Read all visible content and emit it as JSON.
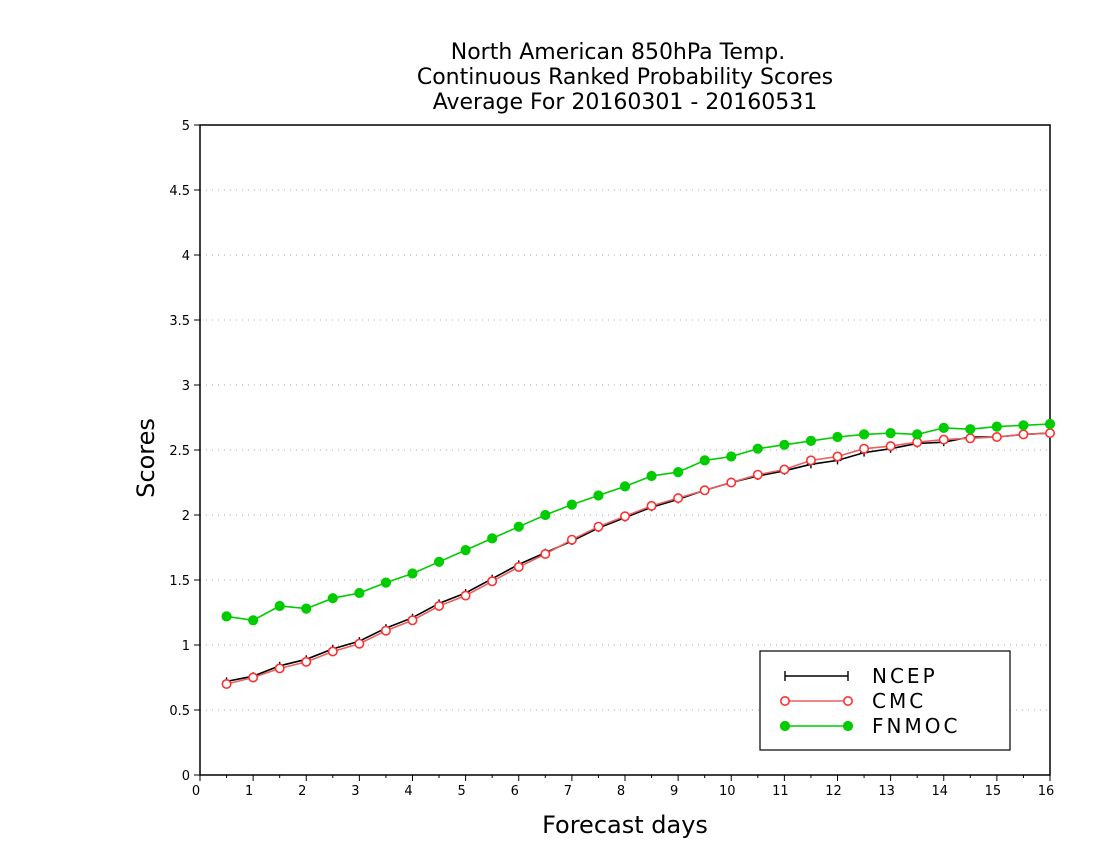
{
  "chart_data": {
    "type": "line",
    "title_lines": [
      "North American 850hPa Temp.",
      "Continuous Ranked Probability Scores",
      "Average For 20160301 - 20160531"
    ],
    "xlabel": "Forecast days",
    "ylabel": "Scores",
    "xlim": [
      0,
      16
    ],
    "ylim": [
      0,
      5
    ],
    "x_ticks": [
      0,
      1,
      2,
      3,
      4,
      5,
      6,
      7,
      8,
      9,
      10,
      11,
      12,
      13,
      14,
      15,
      16
    ],
    "x_tick_labels": [
      "0",
      "1",
      "2",
      "3",
      "4",
      "5",
      "6",
      "7",
      "8",
      "9",
      "10",
      "11",
      "12",
      "13",
      "14",
      "15",
      "16"
    ],
    "y_ticks": [
      0,
      0.5,
      1,
      1.5,
      2,
      2.5,
      3,
      3.5,
      4,
      4.5,
      5
    ],
    "y_tick_labels": [
      "0",
      "0.5",
      "1",
      "1.5",
      "2",
      "2.5",
      "3",
      "3.5",
      "4",
      "4.5",
      "5"
    ],
    "grid": "horizontal-dotted",
    "legend_position": "bottom-right",
    "x": [
      0.5,
      1,
      1.5,
      2,
      2.5,
      3,
      3.5,
      4,
      4.5,
      5,
      5.5,
      6,
      6.5,
      7,
      7.5,
      8,
      8.5,
      9,
      9.5,
      10,
      10.5,
      11,
      11.5,
      12,
      12.5,
      13,
      13.5,
      14,
      14.5,
      15,
      15.5,
      16
    ],
    "series": [
      {
        "name": "NCEP",
        "color": "#000000",
        "marker": "plus",
        "values": [
          0.72,
          0.76,
          0.84,
          0.89,
          0.97,
          1.03,
          1.13,
          1.21,
          1.32,
          1.4,
          1.51,
          1.62,
          1.71,
          1.8,
          1.9,
          1.98,
          2.06,
          2.12,
          2.19,
          2.25,
          2.3,
          2.34,
          2.39,
          2.42,
          2.48,
          2.51,
          2.55,
          2.56,
          2.6,
          2.6,
          2.62,
          2.63
        ]
      },
      {
        "name": "CMC",
        "color": "#ff3030",
        "line_color": "#e86060",
        "marker": "open-circle",
        "values": [
          0.7,
          0.75,
          0.82,
          0.87,
          0.95,
          1.01,
          1.11,
          1.19,
          1.3,
          1.38,
          1.49,
          1.6,
          1.7,
          1.81,
          1.91,
          1.99,
          2.07,
          2.13,
          2.19,
          2.25,
          2.31,
          2.35,
          2.42,
          2.45,
          2.51,
          2.53,
          2.56,
          2.58,
          2.59,
          2.6,
          2.62,
          2.63
        ]
      },
      {
        "name": "FNMOC",
        "color": "#00cc00",
        "line_color": "#00cc00",
        "marker": "filled-circle",
        "values": [
          1.22,
          1.19,
          1.3,
          1.28,
          1.36,
          1.4,
          1.48,
          1.55,
          1.64,
          1.73,
          1.82,
          1.91,
          2.0,
          2.08,
          2.15,
          2.22,
          2.3,
          2.33,
          2.42,
          2.45,
          2.51,
          2.54,
          2.57,
          2.6,
          2.62,
          2.63,
          2.62,
          2.67,
          2.66,
          2.68,
          2.69,
          2.7
        ]
      }
    ]
  }
}
